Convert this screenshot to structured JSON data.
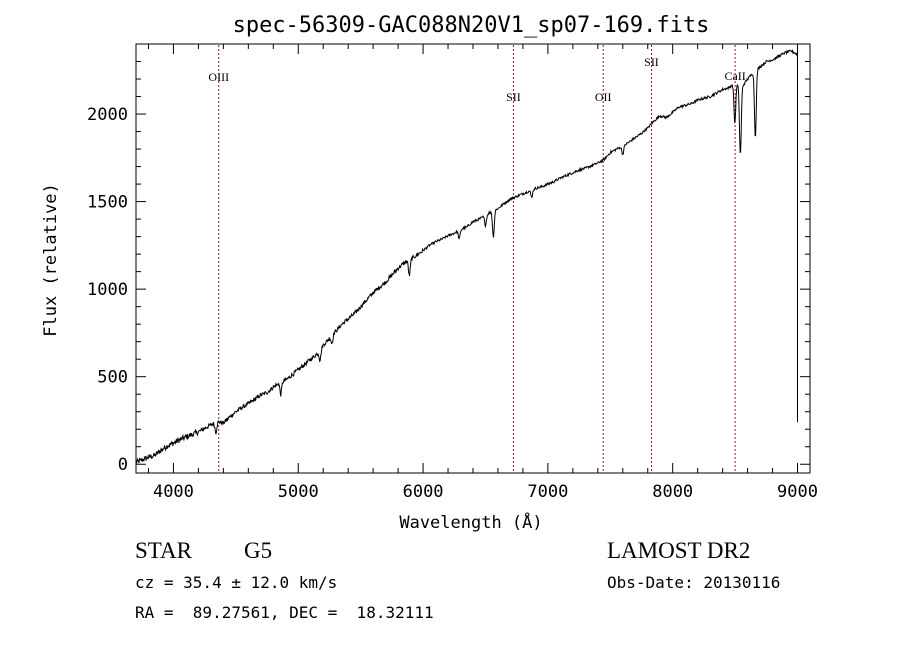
{
  "chart_data": {
    "type": "line",
    "title": "spec-56309-GAC088N20V1_sp07-169.fits",
    "xlabel": "Wavelength (Å)",
    "ylabel": "Flux (relative)",
    "xlim": [
      3700,
      9100
    ],
    "ylim": [
      -50,
      2400
    ],
    "xticks": [
      4000,
      5000,
      6000,
      7000,
      8000,
      9000
    ],
    "yticks": [
      0,
      500,
      1000,
      1500,
      2000
    ],
    "grid": false,
    "line_color": "#000000",
    "marker_color": "#8b1a1a",
    "spectrum": {
      "x": [
        3700,
        3750,
        3800,
        3850,
        3900,
        3950,
        4000,
        4050,
        4100,
        4150,
        4200,
        4250,
        4300,
        4350,
        4400,
        4450,
        4500,
        4550,
        4600,
        4650,
        4700,
        4750,
        4800,
        4850,
        4900,
        4950,
        5000,
        5050,
        5100,
        5150,
        5200,
        5250,
        5300,
        5350,
        5400,
        5450,
        5500,
        5550,
        5600,
        5650,
        5700,
        5750,
        5800,
        5850,
        5900,
        5950,
        6000,
        6050,
        6100,
        6150,
        6200,
        6250,
        6300,
        6350,
        6400,
        6450,
        6500,
        6550,
        6600,
        6650,
        6700,
        6750,
        6800,
        6850,
        6900,
        6950,
        7000,
        7050,
        7100,
        7150,
        7200,
        7250,
        7300,
        7350,
        7400,
        7450,
        7500,
        7550,
        7600,
        7650,
        7700,
        7750,
        7800,
        7850,
        7900,
        7950,
        8000,
        8050,
        8100,
        8150,
        8200,
        8250,
        8300,
        8350,
        8400,
        8450,
        8500,
        8550,
        8600,
        8650,
        8700,
        8750,
        8800,
        8850,
        8900,
        8950,
        9000
      ],
      "y": [
        10,
        25,
        40,
        50,
        80,
        105,
        120,
        140,
        155,
        170,
        185,
        205,
        225,
        245,
        235,
        270,
        300,
        325,
        345,
        370,
        395,
        410,
        440,
        465,
        480,
        510,
        540,
        570,
        600,
        630,
        680,
        720,
        760,
        800,
        830,
        860,
        900,
        940,
        980,
        1010,
        1040,
        1080,
        1120,
        1150,
        1170,
        1195,
        1220,
        1250,
        1270,
        1285,
        1305,
        1320,
        1340,
        1355,
        1385,
        1400,
        1420,
        1445,
        1460,
        1490,
        1515,
        1530,
        1545,
        1560,
        1575,
        1585,
        1600,
        1615,
        1635,
        1650,
        1665,
        1680,
        1690,
        1705,
        1720,
        1740,
        1780,
        1800,
        1815,
        1840,
        1865,
        1890,
        1920,
        1960,
        1990,
        1980,
        2010,
        2040,
        2050,
        2060,
        2080,
        2090,
        2100,
        2120,
        2140,
        2150,
        2180,
        2150,
        2200,
        2240,
        2270,
        2300,
        2310,
        2330,
        2350,
        2360,
        2340
      ]
    },
    "absorption_features": [
      {
        "x": 4340,
        "depth": 60
      },
      {
        "x": 4860,
        "depth": 70
      },
      {
        "x": 5175,
        "depth": 60
      },
      {
        "x": 5270,
        "depth": 45
      },
      {
        "x": 5890,
        "depth": 90
      },
      {
        "x": 6290,
        "depth": 50
      },
      {
        "x": 6500,
        "depth": 55
      },
      {
        "x": 6563,
        "depth": 150
      },
      {
        "x": 6870,
        "depth": 40
      },
      {
        "x": 7600,
        "depth": 45
      },
      {
        "x": 8498,
        "depth": 230
      },
      {
        "x": 8542,
        "depth": 390
      },
      {
        "x": 8662,
        "depth": 380
      }
    ],
    "annotations": [
      {
        "label": "OIII",
        "x": 4363,
        "label_flux": 2190
      },
      {
        "label": "SII",
        "x": 6724,
        "label_flux": 2075
      },
      {
        "label": "OII",
        "x": 7443,
        "label_flux": 2075
      },
      {
        "label": "SII",
        "x": 7830,
        "label_flux": 2275
      },
      {
        "label": "CaII",
        "x": 8500,
        "label_flux": 2195
      }
    ]
  },
  "info": {
    "object_class": "STAR",
    "subclass": "G5",
    "survey": "LAMOST DR2",
    "redshift_line": "cz = 35.4 ± 12.0 km/s",
    "obs_date": "Obs-Date: 20130116",
    "coords": "RA =  89.27561, DEC =  18.32111"
  }
}
